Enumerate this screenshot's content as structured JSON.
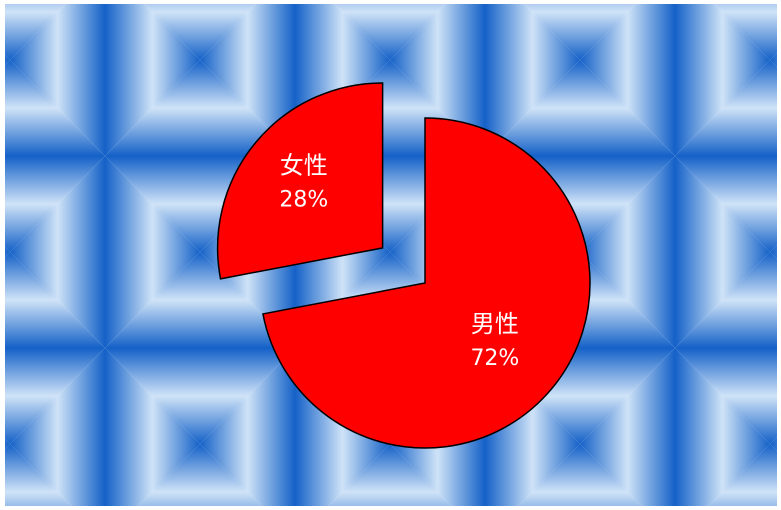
{
  "chart_data": {
    "type": "pie",
    "title": "",
    "exploded": true,
    "start_angle_deg": 0,
    "direction": "clockwise",
    "slices": [
      {
        "label": "男性",
        "value": 72,
        "value_label": "72%",
        "color": "#ff0000"
      },
      {
        "label": "女性",
        "value": 28,
        "value_label": "28%",
        "color": "#ff0000"
      }
    ],
    "slice_stroke_color": "#000000",
    "label_color": "#ffffff",
    "background": {
      "style": "tiled-bevel",
      "tile_center_color": "#cfe3f7",
      "tile_edge_color": "#1461c8"
    }
  }
}
